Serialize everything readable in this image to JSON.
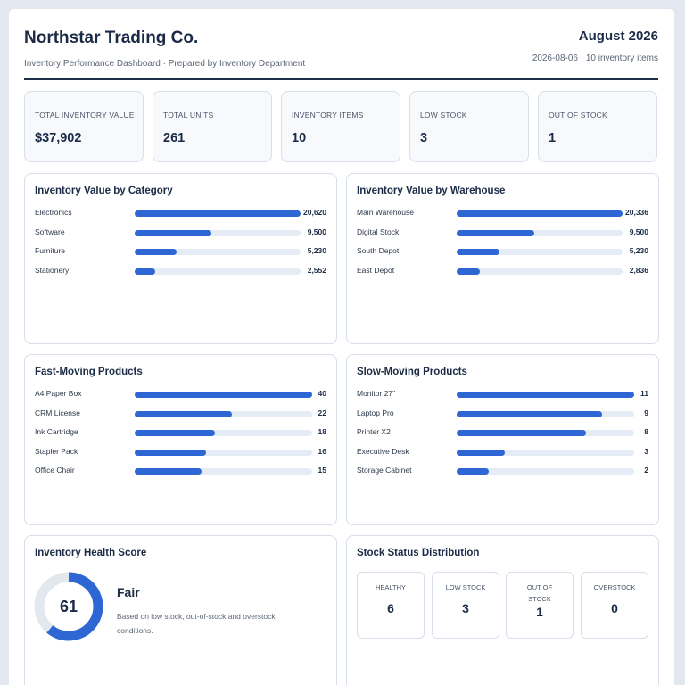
{
  "header": {
    "company": "Northstar Trading Co.",
    "subtitle": "Inventory Performance Dashboard · Prepared by Inventory Department",
    "period": "August 2026",
    "meta": "2026-08-06 · 10 inventory items"
  },
  "kpis": [
    {
      "label": "TOTAL INVENTORY VALUE",
      "value": "$37,902"
    },
    {
      "label": "TOTAL UNITS",
      "value": "261"
    },
    {
      "label": "INVENTORY ITEMS",
      "value": "10"
    },
    {
      "label": "LOW STOCK",
      "value": "3"
    },
    {
      "label": "OUT OF STOCK",
      "value": "1"
    }
  ],
  "chart_data": [
    {
      "type": "bar",
      "title": "Inventory Value by Category",
      "categories": [
        "Electronics",
        "Software",
        "Furniture",
        "Stationery"
      ],
      "values": [
        20620,
        9500,
        5230,
        2552
      ],
      "value_labels": [
        "20,620",
        "9,500",
        "5,230",
        "2,552"
      ],
      "max": 20620,
      "color": "#2e67d4"
    },
    {
      "type": "bar",
      "title": "Inventory Value by Warehouse",
      "categories": [
        "Main Warehouse",
        "Digital Stock",
        "South Depot",
        "East Depot"
      ],
      "values": [
        20336,
        9500,
        5230,
        2836
      ],
      "value_labels": [
        "20,336",
        "9,500",
        "5,230",
        "2,836"
      ],
      "max": 20336,
      "color": "#2e67d4"
    },
    {
      "type": "bar",
      "title": "Fast-Moving Products",
      "categories": [
        "A4 Paper Box",
        "CRM License",
        "Ink Cartridge",
        "Stapler Pack",
        "Office Chair"
      ],
      "values": [
        40,
        22,
        18,
        16,
        15
      ],
      "value_labels": [
        "40",
        "22",
        "18",
        "16",
        "15"
      ],
      "max": 40,
      "color": "#2e67d4"
    },
    {
      "type": "bar",
      "title": "Slow-Moving Products",
      "categories": [
        "Monitor 27\"",
        "Laptop Pro",
        "Printer X2",
        "Executive Desk",
        "Storage Cabinet"
      ],
      "values": [
        11,
        9,
        8,
        3,
        2
      ],
      "value_labels": [
        "11",
        "9",
        "8",
        "3",
        "2"
      ],
      "max": 11,
      "color": "#2e67d4"
    }
  ],
  "health": {
    "title": "Inventory Health Score",
    "score": 61,
    "score_label": "61",
    "max": 100,
    "rating": "Fair",
    "note": "Based on low stock, out-of-stock and overstock conditions.",
    "color": "#2e67d4"
  },
  "status": {
    "title": "Stock Status Distribution",
    "items": [
      {
        "label": "HEALTHY",
        "value": "6"
      },
      {
        "label": "LOW STOCK",
        "value": "3"
      },
      {
        "label": "OUT OF STOCK",
        "value": "1"
      },
      {
        "label": "OVERSTOCK",
        "value": "0"
      }
    ]
  }
}
